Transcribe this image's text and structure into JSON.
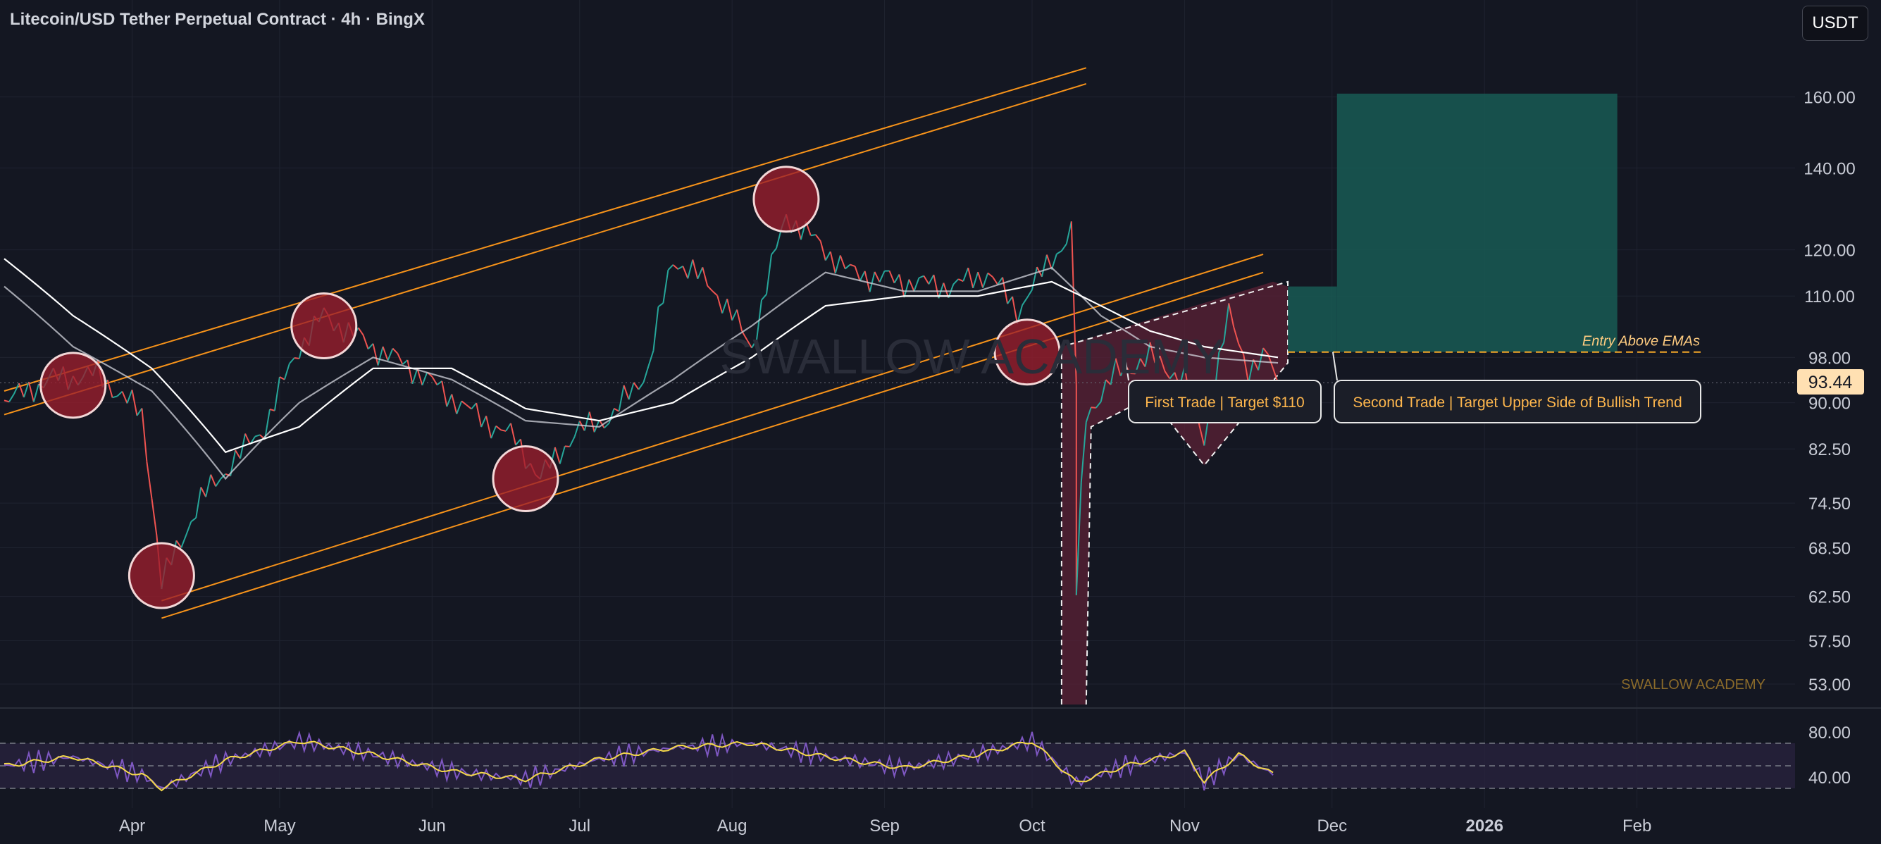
{
  "header": {
    "title": "Litecoin/USD Tether Perpetual Contract · 4h · BingX",
    "currency": "USDT"
  },
  "price_badge": {
    "value": "93.44",
    "color": "#ffe0b2"
  },
  "chart_data": {
    "type": "line",
    "title": "Litecoin/USD Tether Perpetual Contract · 4h · BingX",
    "y_scale": "log",
    "ylim": [
      51,
      175
    ],
    "y_ticks": [
      "160.00",
      "140.00",
      "120.00",
      "110.00",
      "98.00",
      "90.00",
      "82.50",
      "74.50",
      "68.50",
      "62.50",
      "57.50",
      "53.00"
    ],
    "y_tick_values": [
      160,
      140,
      120,
      110,
      98,
      90,
      82.5,
      74.5,
      68.5,
      62.5,
      57.5,
      53
    ],
    "x_ticks": [
      "Apr",
      "May",
      "Jun",
      "Jul",
      "Aug",
      "Sep",
      "Oct",
      "Nov",
      "Dec",
      "2026",
      "Feb"
    ],
    "x_tick_dates": [
      "2025-04-01",
      "2025-05-01",
      "2025-06-01",
      "2025-07-01",
      "2025-08-01",
      "2025-09-01",
      "2025-10-01",
      "2025-11-01",
      "2025-12-01",
      "2026-01-01",
      "2026-02-01"
    ],
    "bold_x_tick": "2026",
    "series": [
      {
        "role": "price",
        "color": "#26a69a",
        "x": [
          "2025-03-06",
          "2025-03-15",
          "2025-03-25",
          "2025-04-03",
          "2025-04-07",
          "2025-04-15",
          "2025-04-28",
          "2025-05-05",
          "2025-05-10",
          "2025-05-20",
          "2025-05-28",
          "2025-06-08",
          "2025-06-18",
          "2025-06-23",
          "2025-06-30",
          "2025-07-08",
          "2025-07-15",
          "2025-07-20",
          "2025-07-28",
          "2025-08-05",
          "2025-08-12",
          "2025-08-18",
          "2025-08-25",
          "2025-09-05",
          "2025-09-15",
          "2025-09-22",
          "2025-09-28",
          "2025-10-05",
          "2025-10-09",
          "2025-10-10",
          "2025-10-12",
          "2025-10-18",
          "2025-10-25",
          "2025-11-01",
          "2025-11-05",
          "2025-11-10",
          "2025-11-14",
          "2025-11-18",
          "2025-11-20"
        ],
        "y": [
          90,
          94,
          95,
          88,
          64,
          75,
          86,
          100,
          106,
          100,
          96,
          89,
          84,
          78,
          85,
          88,
          96,
          118,
          112,
          100,
          128,
          122,
          115,
          113,
          112,
          115,
          107,
          118,
          124,
          63,
          88,
          95,
          98,
          94,
          84,
          106,
          96,
          98,
          93.44
        ]
      },
      {
        "role": "ema-fast",
        "color": "#d1d4dc",
        "x": [
          "2025-03-06",
          "2025-03-20",
          "2025-04-05",
          "2025-04-20",
          "2025-05-05",
          "2025-05-20",
          "2025-06-05",
          "2025-06-20",
          "2025-07-05",
          "2025-07-20",
          "2025-08-05",
          "2025-08-20",
          "2025-09-05",
          "2025-09-20",
          "2025-10-05",
          "2025-10-15",
          "2025-10-25",
          "2025-11-05",
          "2025-11-20"
        ],
        "y": [
          112,
          100,
          92,
          78,
          90,
          98,
          94,
          87,
          86,
          94,
          104,
          115,
          111,
          111,
          116,
          106,
          100,
          98,
          97
        ]
      },
      {
        "role": "ema-slow",
        "color": "#ffffff",
        "x": [
          "2025-03-06",
          "2025-03-20",
          "2025-04-05",
          "2025-04-20",
          "2025-05-05",
          "2025-05-20",
          "2025-06-05",
          "2025-06-20",
          "2025-07-05",
          "2025-07-20",
          "2025-08-05",
          "2025-08-20",
          "2025-09-05",
          "2025-09-20",
          "2025-10-05",
          "2025-10-15",
          "2025-10-25",
          "2025-11-05",
          "2025-11-20"
        ],
        "y": [
          118,
          106,
          96,
          82,
          86,
          96,
          96,
          89,
          87,
          90,
          98,
          108,
          110,
          110,
          113,
          108,
          103,
          100,
          98
        ]
      }
    ],
    "rsi": {
      "ylim": [
        20,
        95
      ],
      "y_ticks": [
        "80.00",
        "40.00"
      ],
      "y_tick_values": [
        80,
        40
      ],
      "x": [
        "2025-03-06",
        "2025-03-20",
        "2025-04-03",
        "2025-04-07",
        "2025-04-20",
        "2025-05-05",
        "2025-05-20",
        "2025-06-05",
        "2025-06-20",
        "2025-07-05",
        "2025-07-20",
        "2025-08-05",
        "2025-08-20",
        "2025-09-05",
        "2025-09-20",
        "2025-10-01",
        "2025-10-10",
        "2025-10-20",
        "2025-11-01",
        "2025-11-05",
        "2025-11-12",
        "2025-11-20"
      ],
      "y": [
        50,
        58,
        42,
        30,
        55,
        72,
        60,
        45,
        38,
        56,
        66,
        70,
        58,
        48,
        60,
        72,
        35,
        50,
        62,
        36,
        60,
        40
      ]
    },
    "annotations": {
      "channel_upper": [
        [
          "2025-03-06",
          88,
          "2025-10-12",
          164
        ],
        [
          "2025-03-06",
          92,
          "2025-10-12",
          169
        ]
      ],
      "channel_lower": [
        [
          "2025-04-07",
          60,
          "2025-11-17",
          115
        ],
        [
          "2025-04-07",
          62,
          "2025-11-17",
          119
        ]
      ],
      "touch_circles": [
        [
          "2025-03-20",
          93
        ],
        [
          "2025-04-07",
          65
        ],
        [
          "2025-05-10",
          104
        ],
        [
          "2025-06-20",
          78
        ],
        [
          "2025-08-12",
          132
        ],
        [
          "2025-09-30",
          99
        ]
      ],
      "entry_line_value": 99,
      "target_box": {
        "x": [
          "2025-11-22",
          "2026-01-28"
        ],
        "y": [
          99,
          161
        ],
        "inner_x": "2025-12-02",
        "inner_y": 112
      },
      "labels": [
        {
          "text": "Entry Above EMAs",
          "color": "#ffcc80"
        },
        {
          "text": "First Trade | Target $110",
          "color": "#ffb74d"
        },
        {
          "text": "Second Trade | Target Upper Side of Bullish Trend",
          "color": "#ffb74d"
        }
      ],
      "watermark": "SWALLOW ACADEMY",
      "signature": "SWALLOW ACADEMY"
    }
  }
}
